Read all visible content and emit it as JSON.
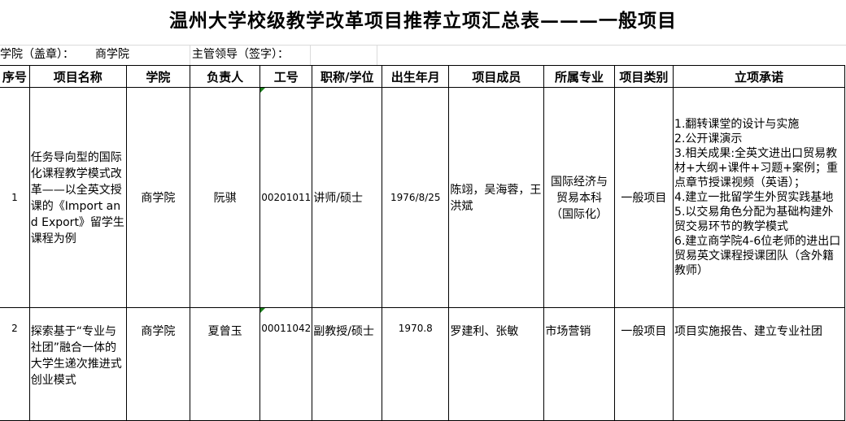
{
  "title": "温州大学校级教学改革项目推荐立项汇总表———一般项目",
  "info": {
    "college_label": "学院（盖章）：",
    "college_value": "商学院",
    "leader_label": "主管领导（签字）："
  },
  "headers": [
    "序号",
    "项目名称",
    "学院",
    "负责人",
    "工号",
    "职称/学位",
    "出生年月",
    "项目成员",
    "所属专业",
    "项目类别",
    "立项承诺"
  ],
  "rows": [
    {
      "no": "1",
      "name": "任务导向型的国际化课程教学模式改革——以全英文授课的《Import and Export》留学生课程为例",
      "college": "商学院",
      "leader": "阮骐",
      "staff_id": "00201011",
      "title_degree": "讲师/硕士",
      "birth": "1976/8/25",
      "members": "陈翊，吴海蓉，王洪斌",
      "major": "国际经济与贸易本科（国际化）",
      "category": "一般项目",
      "commitment": "1.翻转课堂的设计与实施\n2.公开课演示\n3.相关成果:全英文进出口贸易教材+大纲+课件+习题+案例；重点章节授课视频（英语）；\n4.建立一批留学生外贸实践基地\n5.以交易角色分配为基础构建外贸交易环节的教学模式\n6.建立商学院4-6位老师的进出口贸易英文课程授课团队（含外籍教师）"
    },
    {
      "no": "2",
      "name": "探索基于“专业与社团”融合一体的大学生递次推进式创业模式",
      "college": "商学院",
      "leader": "夏曾玉",
      "staff_id": "00011042",
      "title_degree": "副教授/硕士",
      "birth": "1970.8",
      "members": "罗建利、张敏",
      "major": "市场营销",
      "category": "一般项目",
      "commitment": "项目实施报告、建立专业社团"
    }
  ]
}
